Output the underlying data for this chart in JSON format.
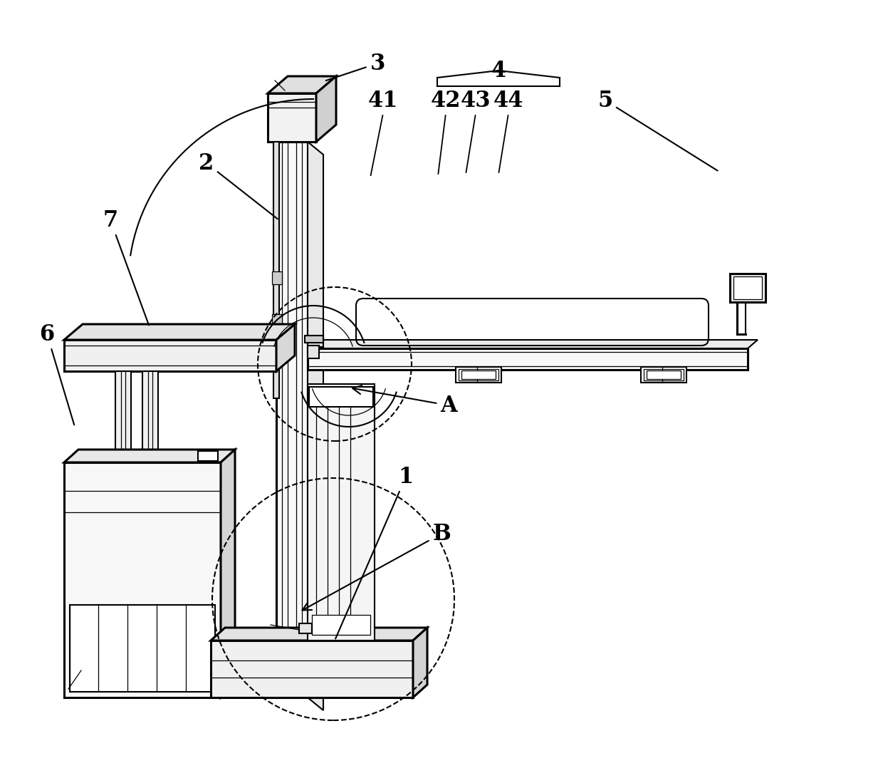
{
  "bg_color": "#ffffff",
  "line_color": "#000000",
  "figsize": [
    12.4,
    10.99
  ],
  "dpi": 100,
  "lw_thick": 2.2,
  "lw_main": 1.5,
  "lw_thin": 0.9,
  "label_fs": 22
}
